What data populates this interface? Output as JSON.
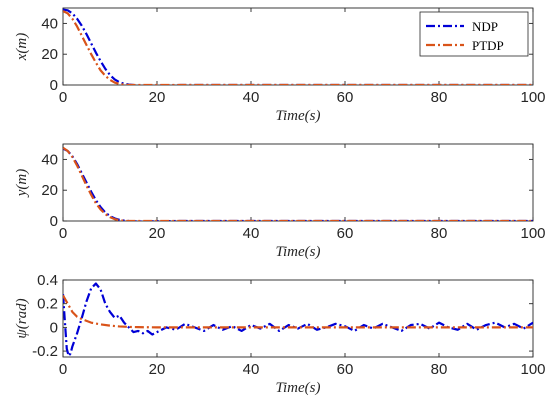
{
  "colors": {
    "ndp": "#0000d6",
    "ptdp": "#d95319",
    "axis": "#262626"
  },
  "legend": {
    "placement": "top-right",
    "entries": [
      "NDP",
      "PTDP"
    ]
  },
  "chart_data": [
    {
      "type": "line",
      "xlabel": "Time(s)",
      "ylabel": "x(m)",
      "xlim": [
        0,
        100
      ],
      "ylim": [
        0,
        50
      ],
      "xticks": [
        "0",
        "20",
        "40",
        "60",
        "80",
        "100"
      ],
      "yticks": [
        "0",
        "20",
        "40"
      ],
      "grid": false,
      "legend": "top-right",
      "series": [
        {
          "name": "NDP",
          "x": [
            0,
            1,
            2,
            3,
            4,
            5,
            6,
            7,
            8,
            9,
            10,
            11,
            12,
            13,
            14,
            15,
            16,
            18,
            20,
            25,
            30,
            40,
            50,
            60,
            70,
            80,
            90,
            100
          ],
          "y": [
            49,
            48.5,
            46.5,
            43,
            38.5,
            33,
            27,
            21,
            15.5,
            10.5,
            6.5,
            3.6,
            1.8,
            0.8,
            0.3,
            0,
            -0.3,
            -0.4,
            -0.2,
            0,
            0,
            0,
            0,
            0,
            0,
            0,
            0,
            0
          ]
        },
        {
          "name": "PTDP",
          "x": [
            0,
            1,
            2,
            3,
            4,
            5,
            6,
            7,
            8,
            9,
            10,
            11,
            12,
            13,
            14,
            15,
            16,
            18,
            20,
            25,
            30,
            40,
            50,
            60,
            70,
            80,
            90,
            100
          ],
          "y": [
            48,
            46.5,
            43,
            38,
            32,
            26,
            20,
            14.5,
            9.5,
            6,
            3.3,
            1.6,
            0.7,
            0.2,
            0,
            0,
            0,
            0,
            0,
            0,
            0,
            0,
            0,
            0,
            0,
            0,
            0,
            0
          ]
        }
      ]
    },
    {
      "type": "line",
      "xlabel": "Time(s)",
      "ylabel": "y(m)",
      "xlim": [
        0,
        100
      ],
      "ylim": [
        0,
        50
      ],
      "xticks": [
        "0",
        "20",
        "40",
        "60",
        "80",
        "100"
      ],
      "yticks": [
        "0",
        "20",
        "40"
      ],
      "grid": false,
      "series": [
        {
          "name": "NDP",
          "x": [
            0,
            1,
            2,
            3,
            4,
            5,
            6,
            7,
            8,
            9,
            10,
            11,
            12,
            13,
            14,
            15,
            16,
            18,
            20,
            25,
            30,
            40,
            50,
            60,
            70,
            80,
            90,
            100
          ],
          "y": [
            47,
            45.5,
            42,
            37,
            31,
            25,
            19,
            13.5,
            9,
            5.5,
            3.2,
            1.7,
            0.8,
            0.3,
            0,
            -0.2,
            -0.3,
            -0.3,
            -0.1,
            0,
            0,
            0,
            0,
            0,
            0,
            0,
            0,
            0
          ]
        },
        {
          "name": "PTDP",
          "x": [
            0,
            1,
            2,
            3,
            4,
            5,
            6,
            7,
            8,
            9,
            10,
            11,
            12,
            13,
            14,
            15,
            16,
            18,
            20,
            25,
            30,
            40,
            50,
            60,
            70,
            80,
            90,
            100
          ],
          "y": [
            47.5,
            45.5,
            41.5,
            36,
            29.5,
            23,
            17,
            11.5,
            7.5,
            4.5,
            2.5,
            1.2,
            0.5,
            0.1,
            0,
            0,
            0,
            0,
            0,
            0,
            0,
            0,
            0,
            0,
            0,
            0,
            0,
            0
          ]
        }
      ]
    },
    {
      "type": "line",
      "xlabel": "Time(s)",
      "ylabel": "ψ(rad)",
      "xlim": [
        0,
        100
      ],
      "ylim": [
        -0.25,
        0.4
      ],
      "xticks": [
        "0",
        "20",
        "40",
        "60",
        "80",
        "100"
      ],
      "yticks": [
        "-0.2",
        "0",
        "0.2",
        "0.4"
      ],
      "grid": false,
      "series": [
        {
          "name": "NDP",
          "x": [
            0,
            0.4,
            0.8,
            1.2,
            1.6,
            2,
            3,
            4,
            5,
            6,
            7,
            8,
            9,
            10,
            11,
            12,
            13,
            14,
            15,
            16,
            17,
            18,
            19,
            20,
            22,
            24,
            26,
            28,
            30,
            32,
            34,
            36,
            38,
            40,
            42,
            44,
            46,
            48,
            50,
            52,
            54,
            56,
            58,
            60,
            62,
            64,
            66,
            68,
            70,
            72,
            74,
            76,
            78,
            80,
            82,
            84,
            86,
            88,
            90,
            92,
            94,
            96,
            98,
            100
          ],
          "y": [
            0.28,
            0.05,
            -0.18,
            -0.24,
            -0.22,
            -0.16,
            -0.05,
            0.08,
            0.22,
            0.33,
            0.37,
            0.32,
            0.2,
            0.13,
            0.08,
            0.1,
            0.04,
            0.0,
            -0.04,
            -0.03,
            -0.05,
            -0.03,
            -0.06,
            -0.04,
            0.0,
            -0.02,
            0.03,
            0.0,
            -0.03,
            0.02,
            -0.02,
            0.01,
            -0.03,
            0.02,
            -0.01,
            0.03,
            -0.03,
            0.02,
            -0.01,
            0.03,
            -0.02,
            0.0,
            0.03,
            0.01,
            -0.03,
            0.02,
            -0.01,
            0.03,
            0.0,
            -0.03,
            0.02,
            0.03,
            -0.01,
            0.04,
            0.0,
            -0.02,
            0.03,
            -0.02,
            0.02,
            0.04,
            0.0,
            0.03,
            -0.01,
            0.04
          ]
        },
        {
          "name": "PTDP",
          "x": [
            0,
            1,
            2,
            3,
            4,
            5,
            6,
            8,
            10,
            12,
            14,
            16,
            18,
            20,
            30,
            40,
            50,
            60,
            70,
            80,
            90,
            100
          ],
          "y": [
            0.27,
            0.2,
            0.13,
            0.09,
            0.07,
            0.055,
            0.04,
            0.025,
            0.015,
            0.008,
            0.004,
            0.002,
            0.001,
            0,
            0,
            0,
            0,
            0,
            0,
            0,
            0,
            0
          ]
        }
      ]
    }
  ]
}
